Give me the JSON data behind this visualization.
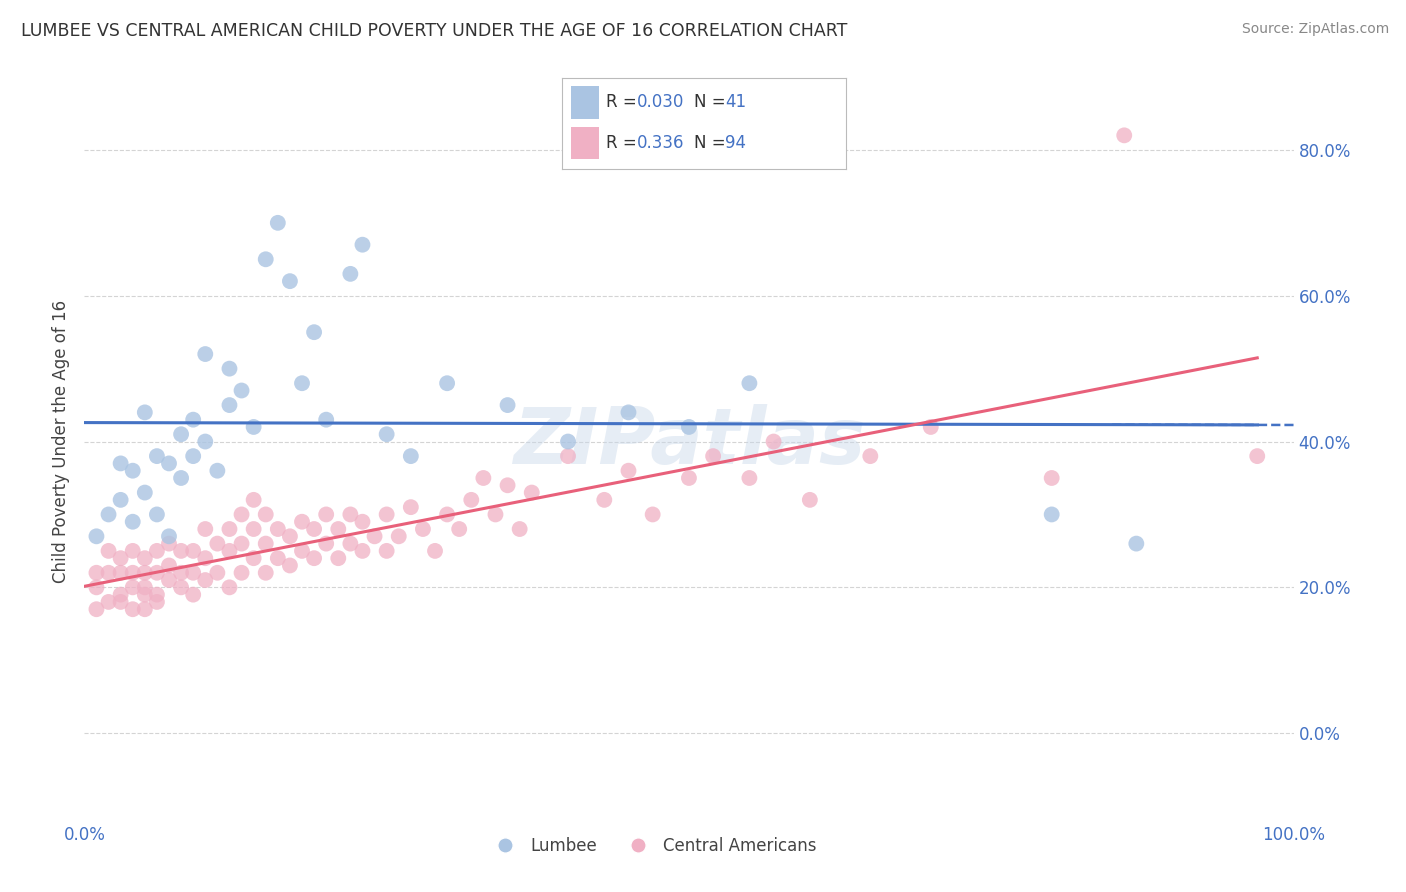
{
  "title": "LUMBEE VS CENTRAL AMERICAN CHILD POVERTY UNDER THE AGE OF 16 CORRELATION CHART",
  "source": "Source: ZipAtlas.com",
  "ylabel": "Child Poverty Under the Age of 16",
  "xlim": [
    0,
    1.0
  ],
  "ylim": [
    -0.12,
    0.92
  ],
  "yticks": [
    0.0,
    0.2,
    0.4,
    0.6,
    0.8
  ],
  "xticks": [
    0.0,
    0.25,
    0.5,
    0.75,
    1.0
  ],
  "lumbee_R": "0.030",
  "lumbee_N": "41",
  "central_R": "0.336",
  "central_N": "94",
  "lumbee_color": "#aac4e2",
  "central_color": "#f0b0c4",
  "lumbee_line_color": "#4472c4",
  "central_line_color": "#e8607a",
  "background_color": "#ffffff",
  "grid_color": "#d0d0d0",
  "watermark": "ZIPatlas",
  "lumbee_x": [
    0.01,
    0.02,
    0.03,
    0.03,
    0.04,
    0.04,
    0.05,
    0.05,
    0.06,
    0.06,
    0.07,
    0.07,
    0.08,
    0.08,
    0.09,
    0.09,
    0.1,
    0.1,
    0.11,
    0.12,
    0.12,
    0.13,
    0.14,
    0.15,
    0.16,
    0.17,
    0.18,
    0.19,
    0.2,
    0.22,
    0.23,
    0.25,
    0.27,
    0.3,
    0.35,
    0.4,
    0.45,
    0.5,
    0.55,
    0.8,
    0.87
  ],
  "lumbee_y": [
    0.27,
    0.3,
    0.32,
    0.37,
    0.29,
    0.36,
    0.33,
    0.44,
    0.3,
    0.38,
    0.27,
    0.37,
    0.35,
    0.41,
    0.38,
    0.43,
    0.4,
    0.52,
    0.36,
    0.45,
    0.5,
    0.47,
    0.42,
    0.65,
    0.7,
    0.62,
    0.48,
    0.55,
    0.43,
    0.63,
    0.67,
    0.41,
    0.38,
    0.48,
    0.45,
    0.4,
    0.44,
    0.42,
    0.48,
    0.3,
    0.26
  ],
  "central_x": [
    0.01,
    0.01,
    0.01,
    0.02,
    0.02,
    0.02,
    0.03,
    0.03,
    0.03,
    0.03,
    0.04,
    0.04,
    0.04,
    0.04,
    0.05,
    0.05,
    0.05,
    0.05,
    0.05,
    0.06,
    0.06,
    0.06,
    0.06,
    0.07,
    0.07,
    0.07,
    0.08,
    0.08,
    0.08,
    0.09,
    0.09,
    0.09,
    0.1,
    0.1,
    0.1,
    0.11,
    0.11,
    0.12,
    0.12,
    0.12,
    0.13,
    0.13,
    0.13,
    0.14,
    0.14,
    0.14,
    0.15,
    0.15,
    0.15,
    0.16,
    0.16,
    0.17,
    0.17,
    0.18,
    0.18,
    0.19,
    0.19,
    0.2,
    0.2,
    0.21,
    0.21,
    0.22,
    0.22,
    0.23,
    0.23,
    0.24,
    0.25,
    0.25,
    0.26,
    0.27,
    0.28,
    0.29,
    0.3,
    0.31,
    0.32,
    0.33,
    0.34,
    0.35,
    0.36,
    0.37,
    0.4,
    0.43,
    0.45,
    0.47,
    0.5,
    0.52,
    0.55,
    0.57,
    0.6,
    0.65,
    0.7,
    0.8,
    0.86,
    0.97
  ],
  "central_y": [
    0.22,
    0.2,
    0.17,
    0.22,
    0.18,
    0.25,
    0.19,
    0.22,
    0.18,
    0.24,
    0.2,
    0.17,
    0.22,
    0.25,
    0.19,
    0.22,
    0.2,
    0.24,
    0.17,
    0.19,
    0.22,
    0.25,
    0.18,
    0.21,
    0.23,
    0.26,
    0.2,
    0.22,
    0.25,
    0.19,
    0.22,
    0.25,
    0.21,
    0.24,
    0.28,
    0.22,
    0.26,
    0.2,
    0.25,
    0.28,
    0.22,
    0.26,
    0.3,
    0.24,
    0.28,
    0.32,
    0.22,
    0.26,
    0.3,
    0.24,
    0.28,
    0.23,
    0.27,
    0.25,
    0.29,
    0.24,
    0.28,
    0.26,
    0.3,
    0.24,
    0.28,
    0.26,
    0.3,
    0.25,
    0.29,
    0.27,
    0.25,
    0.3,
    0.27,
    0.31,
    0.28,
    0.25,
    0.3,
    0.28,
    0.32,
    0.35,
    0.3,
    0.34,
    0.28,
    0.33,
    0.38,
    0.32,
    0.36,
    0.3,
    0.35,
    0.38,
    0.35,
    0.4,
    0.32,
    0.38,
    0.42,
    0.35,
    0.82,
    0.38
  ]
}
